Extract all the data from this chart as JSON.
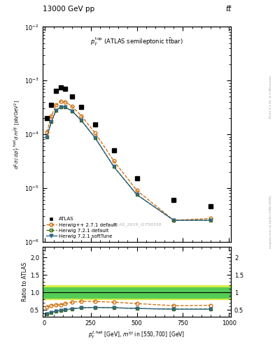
{
  "title_left": "13000 GeV pp",
  "title_right": "tt̅",
  "right_label": "Rivet 3.1.10, ≥ 3.3M events",
  "right_label2": "mcplots.cern.ch [arXiv:1306.3436]",
  "watermark": "ATLAS_2019_I1750330",
  "ylim_main": [
    1e-06,
    0.01
  ],
  "ylim_ratio": [
    0.3,
    2.3
  ],
  "atlas_x": [
    12.5,
    37.5,
    62.5,
    87.5,
    112.5,
    150,
    200,
    275,
    375,
    500,
    700,
    900
  ],
  "atlas_y": [
    0.0002,
    0.00035,
    0.00065,
    0.00075,
    0.0007,
    0.0005,
    0.00032,
    0.00015,
    5e-05,
    1.5e-05,
    6e-06,
    4.5e-06
  ],
  "herwig_pp_x": [
    12.5,
    37.5,
    62.5,
    87.5,
    112.5,
    150,
    200,
    275,
    375,
    500,
    700,
    900
  ],
  "herwig_pp_y": [
    0.00011,
    0.00022,
    0.00035,
    0.00041,
    0.0004,
    0.00033,
    0.00022,
    0.000105,
    3.2e-05,
    9e-06,
    2.5e-06,
    2.7e-06
  ],
  "herwig721d_x": [
    12.5,
    37.5,
    62.5,
    87.5,
    112.5,
    150,
    200,
    275,
    375,
    500,
    700,
    900
  ],
  "herwig721d_y": [
    9e-05,
    0.00017,
    0.00028,
    0.00032,
    0.00032,
    0.00027,
    0.00018,
    8.5e-05,
    2.5e-05,
    7.5e-06,
    2.5e-06,
    2.5e-06
  ],
  "herwig721s_x": [
    12.5,
    37.5,
    62.5,
    87.5,
    112.5,
    150,
    200,
    275,
    375,
    500,
    700,
    900
  ],
  "herwig721s_y": [
    9e-05,
    0.00017,
    0.00028,
    0.00032,
    0.00032,
    0.00027,
    0.00018,
    8.5e-05,
    2.5e-05,
    7.5e-06,
    2.5e-06,
    2.5e-06
  ],
  "ratio_herwig_pp": [
    0.58,
    0.63,
    0.64,
    0.65,
    0.68,
    0.72,
    0.74,
    0.74,
    0.72,
    0.68,
    0.62,
    0.63
  ],
  "ratio_herwig721d": [
    0.38,
    0.43,
    0.46,
    0.48,
    0.5,
    0.53,
    0.56,
    0.57,
    0.56,
    0.54,
    0.52,
    0.52
  ],
  "ratio_herwig721s": [
    0.38,
    0.43,
    0.46,
    0.48,
    0.5,
    0.53,
    0.56,
    0.57,
    0.56,
    0.54,
    0.52,
    0.52
  ],
  "band_inner_upper": 1.15,
  "band_inner_lower": 0.85,
  "band_outer_upper": 1.2,
  "band_outer_lower": 0.8,
  "color_atlas": "#000000",
  "color_herwig_pp": "#cc6600",
  "color_herwig721d": "#336600",
  "color_herwig721s": "#336688",
  "color_band_inner": "#55cc55",
  "color_band_outer": "#ddee44",
  "background_color": "#ffffff"
}
